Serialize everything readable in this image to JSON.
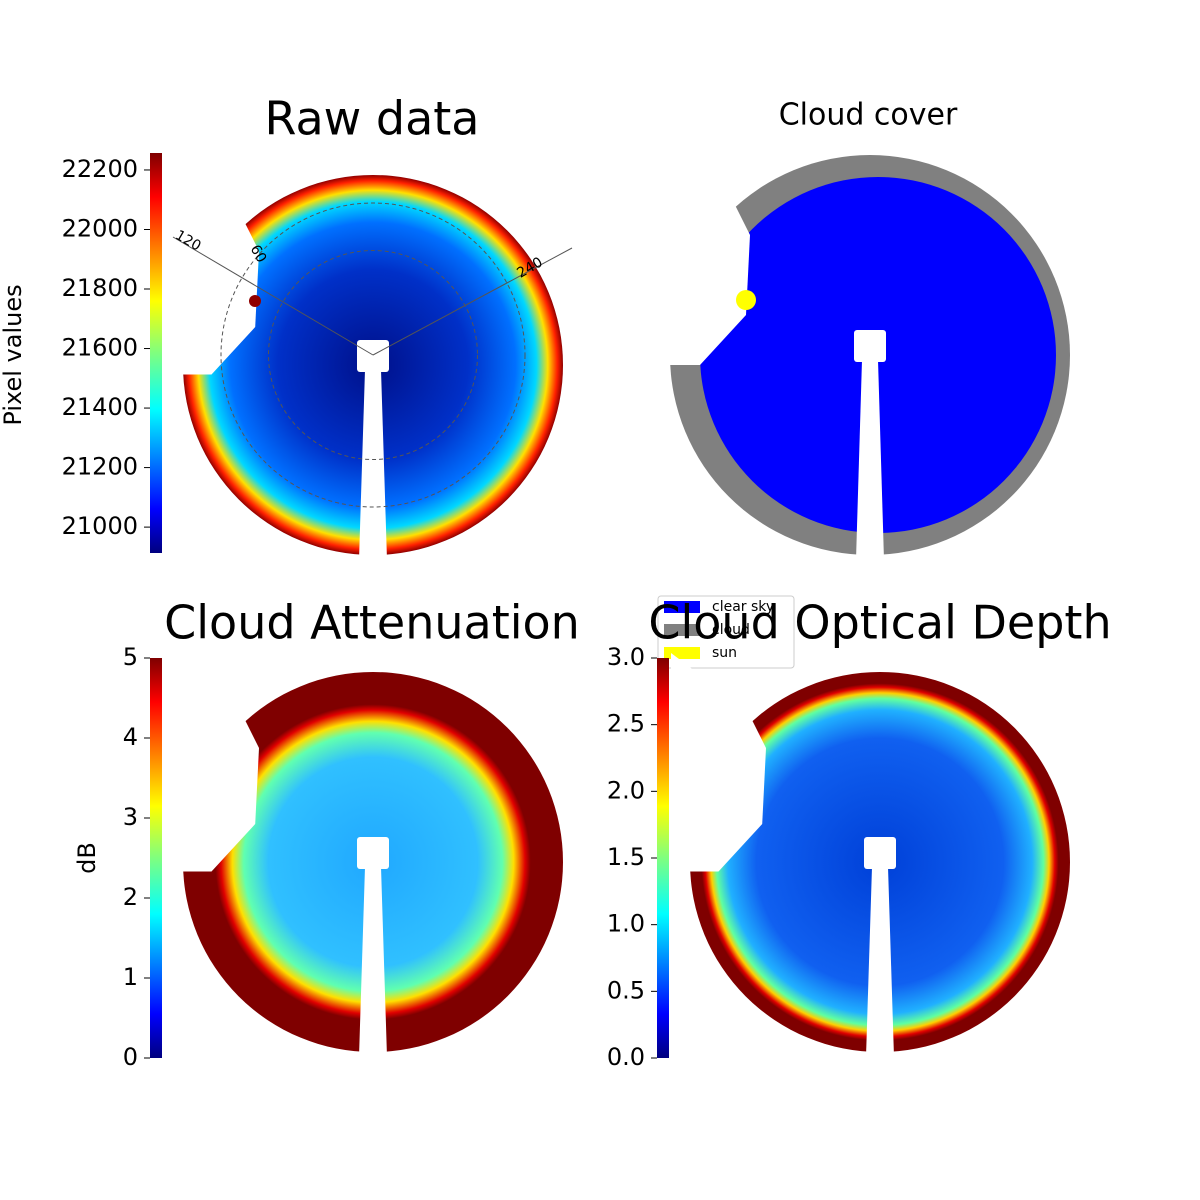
{
  "chart_data": [
    {
      "type": "image",
      "title": "Raw data",
      "colorbar_label": "Pixel values",
      "cmap": "jet",
      "clim": [
        20913,
        22257
      ],
      "cticks": [
        21000,
        21200,
        21400,
        21600,
        21800,
        22000,
        22200
      ],
      "polar_labels": [
        "120",
        "60",
        "240"
      ]
    },
    {
      "type": "mask",
      "title": "Cloud cover",
      "series": [
        {
          "name": "clear sky",
          "color": "#0000ff"
        },
        {
          "name": "cloud",
          "color": "#808080"
        },
        {
          "name": "sun",
          "color": "#ffff00"
        }
      ]
    },
    {
      "type": "image",
      "title": "Cloud Attenuation",
      "colorbar_label": "dB",
      "cmap": "jet",
      "clim": [
        0,
        5
      ],
      "cticks": [
        0,
        1,
        2,
        3,
        4,
        5
      ]
    },
    {
      "type": "image",
      "title": "Cloud Optical Depth",
      "cmap": "jet",
      "clim": [
        0,
        3
      ],
      "cticks": [
        {
          "value": 0,
          "label": "0.0"
        },
        {
          "value": 0.5,
          "label": "0.5"
        },
        {
          "value": 1,
          "label": "1.0"
        },
        {
          "value": 1.5,
          "label": "1.5"
        },
        {
          "value": 2,
          "label": "2.0"
        },
        {
          "value": 2.5,
          "label": "2.5"
        },
        {
          "value": 3,
          "label": "3.0"
        }
      ]
    }
  ]
}
